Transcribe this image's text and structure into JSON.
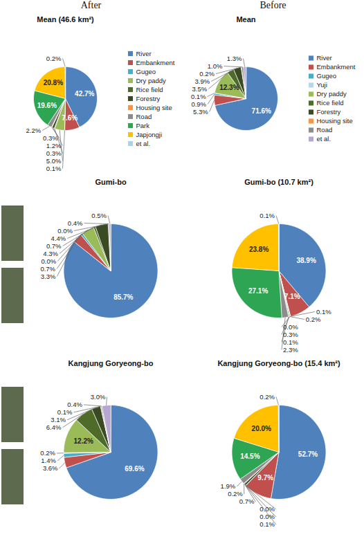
{
  "headers": [
    "After",
    "Before"
  ],
  "chart_data": [
    {
      "type": "pie",
      "title": "Mean (46.6 km²)",
      "legend": "right",
      "data_labels": true,
      "categories": [
        "River",
        "Embankment",
        "Gugeo",
        "Dry paddy",
        "Rice field",
        "Forestry",
        "Housing site",
        "Road",
        "Park",
        "Japjongji",
        "et al."
      ],
      "values": [
        42.7,
        7.6,
        0.1,
        5.0,
        0.3,
        1.2,
        0.3,
        2.2,
        19.6,
        20.8,
        0.2
      ],
      "value_labels": [
        "42.7%",
        "7.6%",
        "0.1%",
        "5.0%",
        "0.3%",
        "1.2%",
        "0.3%",
        "2.2%",
        "19.6%",
        "20.8%",
        "0.2%"
      ],
      "colors": [
        "#4F81BD",
        "#C0504D",
        "#4BACC6",
        "#9BBB59",
        "#4E6B2A",
        "#3A4A22",
        "#F79646",
        "#8C8C8C",
        "#2EA553",
        "#FFC000",
        "#A9D4E8"
      ]
    },
    {
      "type": "pie",
      "title": "Mean",
      "legend": "right",
      "data_labels": true,
      "categories": [
        "River",
        "Embankment",
        "Gugeo",
        "Yuji",
        "Dry paddy",
        "Rice field",
        "Forestry",
        "Housing site",
        "Road",
        "et al."
      ],
      "values": [
        71.6,
        5.3,
        0.9,
        0.1,
        12.3,
        3.5,
        3.9,
        0.2,
        1.0,
        1.3
      ],
      "value_labels": [
        "71.6%",
        "5.3%",
        "0.9%",
        "0.1%",
        "12.3%",
        "3.5%",
        "3.9%",
        "0.2%",
        "1.0%",
        "1.3%"
      ],
      "colors": [
        "#4F81BD",
        "#C0504D",
        "#4BACC6",
        "#B9D7EA",
        "#9BBB59",
        "#4E6B2A",
        "#3A4A22",
        "#F79646",
        "#8C8C8C",
        "#B7A6D0"
      ]
    },
    {
      "type": "pie",
      "title": "Gumi-bo",
      "data_labels": true,
      "categories": [
        "River",
        "Embankment",
        "Gugeo",
        "Yuji",
        "Dry paddy",
        "Rice field",
        "Forestry",
        "Housing site",
        "Road",
        "et al."
      ],
      "values": [
        85.7,
        3.3,
        0.7,
        0.0,
        4.3,
        0.7,
        4.4,
        0.0,
        0.4,
        0.5
      ],
      "value_labels": [
        "85.7%",
        "3.3%",
        "0.7%",
        "0.0%",
        "4.3%",
        "0.7%",
        "4.4%",
        "0.0%",
        "0.4%",
        "0.5%"
      ],
      "colors": [
        "#4F81BD",
        "#C0504D",
        "#4BACC6",
        "#B9D7EA",
        "#9BBB59",
        "#4E6B2A",
        "#3A4A22",
        "#F79646",
        "#8C8C8C",
        "#B7A6D0"
      ]
    },
    {
      "type": "pie",
      "title": "Gumi-bo (10.7 km²)",
      "data_labels": true,
      "categories": [
        "River",
        "Embankment",
        "Gugeo",
        "Dry paddy",
        "Rice field",
        "Forestry",
        "Housing site",
        "Road",
        "Park",
        "Japjongji",
        "et al."
      ],
      "values": [
        38.9,
        7.1,
        0.1,
        0.2,
        0.0,
        0.3,
        0.1,
        2.3,
        27.1,
        23.8,
        0.1
      ],
      "value_labels": [
        "38.9%",
        "7.1%",
        "0.1%",
        "0.2%",
        "0.0%",
        "0.3%",
        "0.1%",
        "2.3%",
        "27.1%",
        "23.8%",
        "0.1%"
      ],
      "colors": [
        "#4F81BD",
        "#C0504D",
        "#4BACC6",
        "#9BBB59",
        "#4E6B2A",
        "#3A4A22",
        "#F79646",
        "#8C8C8C",
        "#2EA553",
        "#FFC000",
        "#A9D4E8"
      ]
    },
    {
      "type": "pie",
      "title": "Kangjung Goryeong-bo",
      "data_labels": true,
      "categories": [
        "River",
        "Embankment",
        "Gugeo",
        "Yuji",
        "Dry paddy",
        "Rice field",
        "Forestry",
        "Housing site",
        "Road",
        "et al."
      ],
      "values": [
        69.6,
        3.6,
        1.4,
        0.2,
        12.2,
        6.4,
        3.1,
        0.1,
        0.4,
        3.0
      ],
      "value_labels": [
        "69.6%",
        "3.6%",
        "1.4%",
        "0.2%",
        "12.2%",
        "6.4%",
        "3.1%",
        "0.1%",
        "0.4%",
        "3.0%"
      ],
      "colors": [
        "#4F81BD",
        "#C0504D",
        "#4BACC6",
        "#B9D7EA",
        "#9BBB59",
        "#4E6B2A",
        "#3A4A22",
        "#F79646",
        "#8C8C8C",
        "#B7A6D0"
      ]
    },
    {
      "type": "pie",
      "title": "Kangjung Goryeong-bo (15.4 km²)",
      "data_labels": true,
      "categories": [
        "River",
        "Embankment",
        "Gugeo",
        "Dry paddy",
        "Rice field",
        "Forestry",
        "Housing site",
        "Road",
        "Park",
        "Japjongji",
        "et al."
      ],
      "values": [
        52.7,
        9.7,
        0.1,
        0.0,
        0.0,
        0.7,
        0.2,
        1.9,
        14.5,
        20.0,
        0.2
      ],
      "value_labels": [
        "52.7%",
        "9.7%",
        "0.1%",
        "0.0%",
        "0.0%",
        "0.7%",
        "0.2%",
        "1.9%",
        "14.5%",
        "20.0%",
        "0.2%"
      ],
      "colors": [
        "#4F81BD",
        "#C0504D",
        "#4BACC6",
        "#9BBB59",
        "#4E6B2A",
        "#3A4A22",
        "#F79646",
        "#8C8C8C",
        "#2EA553",
        "#FFC000",
        "#A9D4E8"
      ]
    }
  ]
}
